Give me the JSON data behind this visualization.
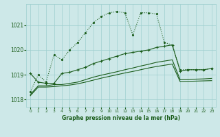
{
  "title": "Graphe pression niveau de la mer (hPa)",
  "background_color": "#cde8e8",
  "grid_color": "#9ecfcf",
  "line_color": "#1a5c1a",
  "xlim": [
    -0.5,
    23.5
  ],
  "ylim": [
    1017.7,
    1021.85
  ],
  "yticks": [
    1018,
    1019,
    1020,
    1021
  ],
  "xticks": [
    0,
    1,
    2,
    3,
    4,
    5,
    6,
    7,
    8,
    9,
    10,
    11,
    12,
    13,
    14,
    15,
    16,
    17,
    18,
    19,
    20,
    21,
    22,
    23
  ],
  "series1_x": [
    0,
    1,
    2,
    3,
    4,
    5,
    6,
    7,
    8,
    9,
    10,
    11,
    12,
    13,
    14,
    15,
    16,
    17,
    18,
    19,
    20,
    21,
    22,
    23
  ],
  "series1_y": [
    1018.3,
    1019.0,
    1018.7,
    1019.8,
    1019.6,
    1020.0,
    1020.3,
    1020.7,
    1021.1,
    1021.35,
    1021.5,
    1021.55,
    1021.5,
    1020.6,
    1021.5,
    1021.5,
    1021.45,
    1020.3,
    1020.2,
    1019.2,
    1019.2,
    1019.2,
    1019.2,
    1019.25
  ],
  "series2_x": [
    0,
    1,
    2,
    3,
    4,
    5,
    6,
    7,
    8,
    9,
    10,
    11,
    12,
    13,
    14,
    15,
    16,
    17,
    18,
    19,
    20,
    21,
    22,
    23
  ],
  "series2_y": [
    1019.05,
    1018.7,
    1018.65,
    1018.65,
    1019.05,
    1019.1,
    1019.2,
    1019.3,
    1019.45,
    1019.55,
    1019.65,
    1019.75,
    1019.85,
    1019.9,
    1019.95,
    1020.0,
    1020.1,
    1020.15,
    1020.2,
    1019.15,
    1019.2,
    1019.2,
    1019.2,
    1019.25
  ],
  "series3_x": [
    0,
    1,
    2,
    3,
    4,
    5,
    6,
    7,
    8,
    9,
    10,
    11,
    12,
    13,
    14,
    15,
    16,
    17,
    18,
    19,
    20,
    21,
    22,
    23
  ],
  "series3_y": [
    1018.2,
    1018.55,
    1018.55,
    1018.6,
    1018.6,
    1018.65,
    1018.7,
    1018.8,
    1018.9,
    1018.98,
    1019.05,
    1019.12,
    1019.2,
    1019.27,
    1019.35,
    1019.42,
    1019.5,
    1019.55,
    1019.6,
    1018.8,
    1018.8,
    1018.82,
    1018.83,
    1018.85
  ],
  "series4_x": [
    0,
    1,
    2,
    3,
    4,
    5,
    6,
    7,
    8,
    9,
    10,
    11,
    12,
    13,
    14,
    15,
    16,
    17,
    18,
    19,
    20,
    21,
    22,
    23
  ],
  "series4_y": [
    1018.15,
    1018.5,
    1018.5,
    1018.52,
    1018.55,
    1018.58,
    1018.63,
    1018.7,
    1018.78,
    1018.86,
    1018.93,
    1019.0,
    1019.07,
    1019.13,
    1019.2,
    1019.27,
    1019.33,
    1019.38,
    1019.43,
    1018.72,
    1018.73,
    1018.74,
    1018.75,
    1018.76
  ]
}
